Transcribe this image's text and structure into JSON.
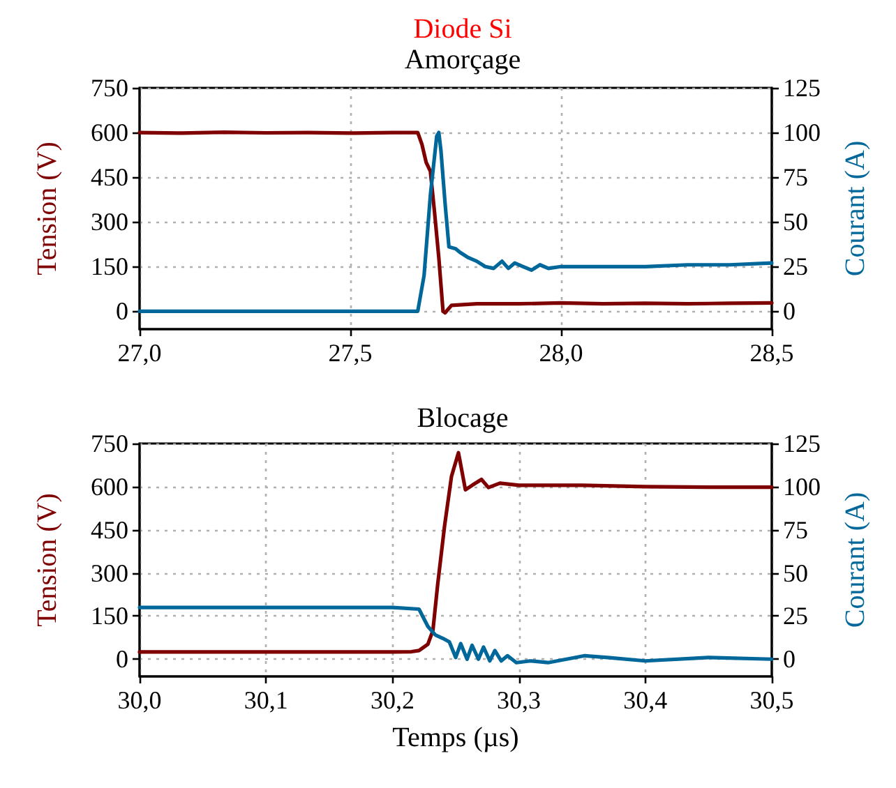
{
  "chart_data": [
    {
      "type": "line",
      "title": "Diode Si",
      "subtitle": "Amorçage",
      "ylabel": "Tension (V)",
      "y2label": "Courant (A)",
      "xlim": [
        27,
        28.5
      ],
      "xticks": [
        {
          "value": 27,
          "label": "27,0"
        },
        {
          "value": 27.5,
          "label": "27,5"
        },
        {
          "value": 28,
          "label": "28,0"
        },
        {
          "value": 28.5,
          "label": "28,5"
        }
      ],
      "ylim": [
        -60,
        750
      ],
      "yticks": [
        0,
        150,
        300,
        450,
        600,
        750
      ],
      "y2lim": [
        -10,
        125
      ],
      "y2ticks": [
        0,
        25,
        50,
        75,
        100,
        125
      ],
      "grid": true,
      "marker": "none",
      "line_style": "solid",
      "series": [
        {
          "color": "#7f0000",
          "x": [
            27.0,
            27.1,
            27.2,
            27.3,
            27.4,
            27.5,
            27.6,
            27.66,
            27.67,
            27.68,
            27.69,
            27.7,
            27.71,
            27.72,
            27.725,
            27.74,
            27.8,
            27.9,
            28.0,
            28.1,
            28.2,
            28.3,
            28.4,
            28.5
          ],
          "values": [
            600,
            598,
            601,
            599,
            600,
            598,
            600,
            600,
            560,
            500,
            470,
            330,
            180,
            0,
            -5,
            20,
            25,
            25,
            28,
            25,
            27,
            25,
            27,
            28
          ]
        },
        {
          "color": "#00679a",
          "axis": "y2",
          "x": [
            27.0,
            27.3,
            27.66,
            27.675,
            27.69,
            27.705,
            27.71,
            27.715,
            27.725,
            27.734,
            27.75,
            27.76,
            27.78,
            27.8,
            27.82,
            27.84,
            27.86,
            27.875,
            27.89,
            27.91,
            27.93,
            27.95,
            27.97,
            28.0,
            28.1,
            28.2,
            28.3,
            28.4,
            28.5
          ],
          "values": [
            0,
            0,
            0,
            20,
            65,
            98,
            100,
            90,
            60,
            36,
            35,
            33,
            30,
            28,
            25,
            24,
            28,
            24,
            27,
            25,
            23,
            26,
            24,
            25,
            25,
            25,
            26,
            26,
            27
          ]
        }
      ]
    },
    {
      "type": "line",
      "title": "Blocage",
      "xlabel": "Temps (µs)",
      "ylabel": "Tension (V)",
      "y2label": "Courant (A)",
      "xlim": [
        30,
        30.5
      ],
      "xticks": [
        {
          "value": 30,
          "label": "30,0"
        },
        {
          "value": 30.1,
          "label": "30,1"
        },
        {
          "value": 30.2,
          "label": "30,2"
        },
        {
          "value": 30.3,
          "label": "30,3"
        },
        {
          "value": 30.4,
          "label": "30,4"
        },
        {
          "value": 30.5,
          "label": "30,5"
        }
      ],
      "ylim": [
        -60,
        750
      ],
      "yticks": [
        0,
        150,
        300,
        450,
        600,
        750
      ],
      "y2lim": [
        -10,
        125
      ],
      "y2ticks": [
        0,
        25,
        50,
        75,
        100,
        125
      ],
      "grid": true,
      "marker": "none",
      "line_style": "solid",
      "series": [
        {
          "color": "#7f0000",
          "x": [
            30.0,
            30.1,
            30.2,
            30.215,
            30.221,
            30.228,
            30.232,
            30.2357,
            30.2412,
            30.2467,
            30.2522,
            30.2577,
            30.2631,
            30.2704,
            30.2759,
            30.285,
            30.3,
            30.35,
            30.4,
            30.45,
            30.5
          ],
          "values": [
            25,
            25,
            25,
            26,
            30,
            52,
            100,
            257,
            463,
            636,
            718,
            589,
            605,
            625,
            597,
            612,
            605,
            605,
            600,
            598,
            598
          ]
        },
        {
          "color": "#00679a",
          "axis": "y2",
          "x": [
            30.0,
            30.1,
            30.2,
            30.221,
            30.228,
            30.234,
            30.24,
            30.245,
            30.25,
            30.254,
            30.259,
            30.263,
            30.268,
            30.272,
            30.277,
            30.281,
            30.286,
            30.291,
            30.298,
            30.309,
            30.323,
            30.345,
            30.352,
            30.37,
            30.4,
            30.45,
            30.5
          ],
          "values": [
            30,
            30,
            30,
            29,
            19,
            14,
            12,
            10,
            1,
            9,
            0,
            8,
            0,
            7,
            -1,
            5,
            -1,
            2,
            -2,
            -1,
            -2,
            1,
            2,
            1,
            -1,
            1,
            0
          ]
        }
      ]
    }
  ]
}
